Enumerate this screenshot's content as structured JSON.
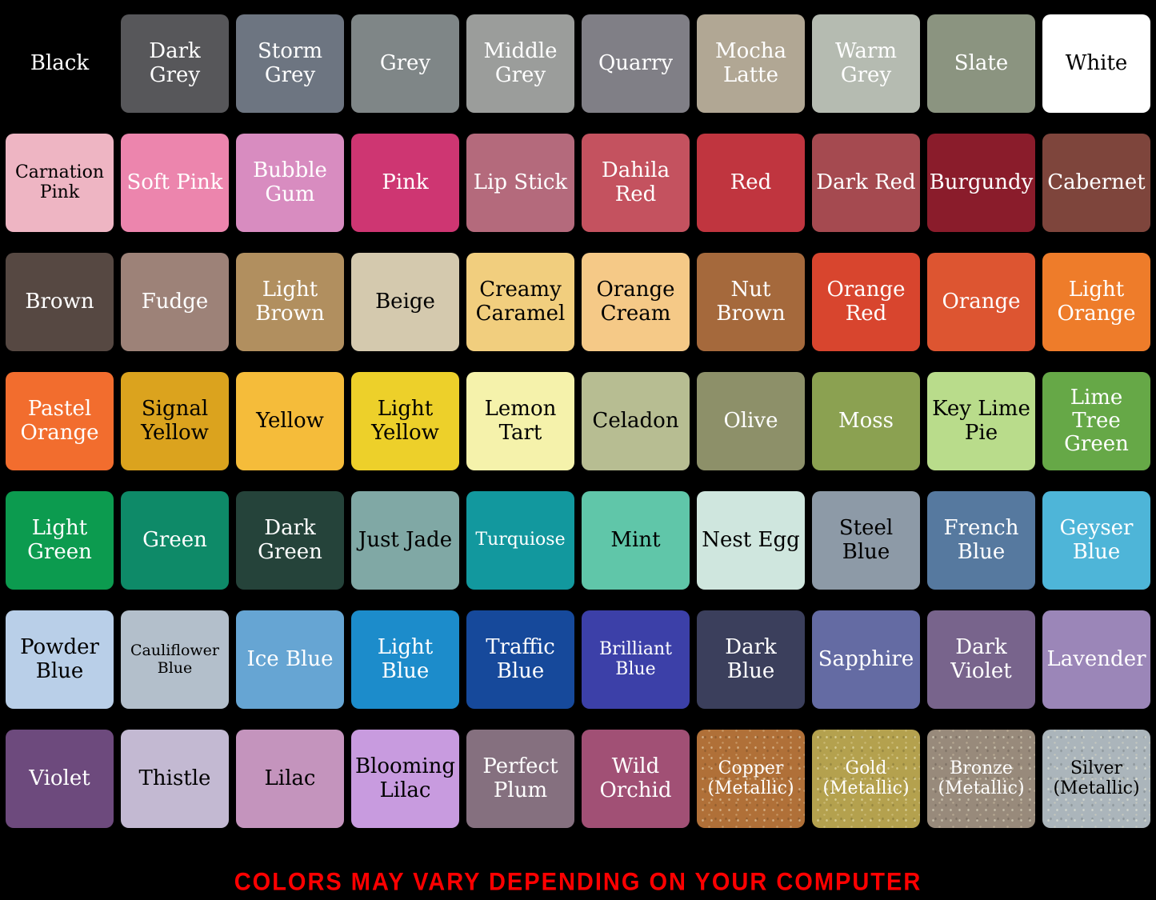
{
  "background": "#000000",
  "chart_data": {
    "type": "table",
    "title": "Color chart of named color swatches",
    "columns": 10,
    "rows": [
      [
        {
          "name": "Black",
          "hex": "#000000",
          "text": "#ffffff",
          "metallic": false
        },
        {
          "name": "Dark Grey",
          "hex": "#57575a",
          "text": "#ffffff",
          "metallic": false
        },
        {
          "name": "Storm Grey",
          "hex": "#6d7581",
          "text": "#ffffff",
          "metallic": false
        },
        {
          "name": "Grey",
          "hex": "#7f8687",
          "text": "#ffffff",
          "metallic": false
        },
        {
          "name": "Middle Grey",
          "hex": "#9b9d9b",
          "text": "#ffffff",
          "metallic": false
        },
        {
          "name": "Quarry",
          "hex": "#807f86",
          "text": "#ffffff",
          "metallic": false
        },
        {
          "name": "Mocha Latte",
          "hex": "#b1a794",
          "text": "#ffffff",
          "metallic": false
        },
        {
          "name": "Warm Grey",
          "hex": "#b5bbb1",
          "text": "#ffffff",
          "metallic": false
        },
        {
          "name": "Slate",
          "hex": "#8b9480",
          "text": "#ffffff",
          "metallic": false
        },
        {
          "name": "White",
          "hex": "#ffffff",
          "text": "#000000",
          "metallic": false
        }
      ],
      [
        {
          "name": "Carnation Pink",
          "hex": "#eeb5c3",
          "text": "#000000",
          "metallic": false
        },
        {
          "name": "Soft Pink",
          "hex": "#ec85ad",
          "text": "#ffffff",
          "metallic": false
        },
        {
          "name": "Bubble Gum",
          "hex": "#d88cc0",
          "text": "#ffffff",
          "metallic": false
        },
        {
          "name": "Pink",
          "hex": "#ce3672",
          "text": "#ffffff",
          "metallic": false
        },
        {
          "name": "Lip Stick",
          "hex": "#b46a7c",
          "text": "#ffffff",
          "metallic": false
        },
        {
          "name": "Dahila Red",
          "hex": "#c4525f",
          "text": "#ffffff",
          "metallic": false
        },
        {
          "name": "Red",
          "hex": "#c0353f",
          "text": "#ffffff",
          "metallic": false
        },
        {
          "name": "Dark Red",
          "hex": "#a54a50",
          "text": "#ffffff",
          "metallic": false
        },
        {
          "name": "Burgundy",
          "hex": "#8a1c2b",
          "text": "#ffffff",
          "metallic": false
        },
        {
          "name": "Cabernet",
          "hex": "#7e453c",
          "text": "#ffffff",
          "metallic": false
        }
      ],
      [
        {
          "name": "Brown",
          "hex": "#564842",
          "text": "#ffffff",
          "metallic": false
        },
        {
          "name": "Fudge",
          "hex": "#9d8278",
          "text": "#ffffff",
          "metallic": false
        },
        {
          "name": "Light Brown",
          "hex": "#b18f5f",
          "text": "#ffffff",
          "metallic": false
        },
        {
          "name": "Beige",
          "hex": "#d4c9ae",
          "text": "#000000",
          "metallic": false
        },
        {
          "name": "Creamy Caramel",
          "hex": "#f1ce7e",
          "text": "#000000",
          "metallic": false
        },
        {
          "name": "Orange Cream",
          "hex": "#f5c987",
          "text": "#000000",
          "metallic": false
        },
        {
          "name": "Nut Brown",
          "hex": "#a5693c",
          "text": "#ffffff",
          "metallic": false
        },
        {
          "name": "Orange Red",
          "hex": "#d8452e",
          "text": "#ffffff",
          "metallic": false
        },
        {
          "name": "Orange",
          "hex": "#dd5531",
          "text": "#ffffff",
          "metallic": false
        },
        {
          "name": "Light Orange",
          "hex": "#ee7c2a",
          "text": "#ffffff",
          "metallic": false
        }
      ],
      [
        {
          "name": "Pastel Orange",
          "hex": "#f26d2e",
          "text": "#ffffff",
          "metallic": false
        },
        {
          "name": "Signal Yellow",
          "hex": "#dba31e",
          "text": "#000000",
          "metallic": false
        },
        {
          "name": "Yellow",
          "hex": "#f5bc3a",
          "text": "#000000",
          "metallic": false
        },
        {
          "name": "Light Yellow",
          "hex": "#edd02a",
          "text": "#000000",
          "metallic": false
        },
        {
          "name": "Lemon Tart",
          "hex": "#f5f2ab",
          "text": "#000000",
          "metallic": false
        },
        {
          "name": "Celadon",
          "hex": "#b7bd92",
          "text": "#000000",
          "metallic": false
        },
        {
          "name": "Olive",
          "hex": "#8d9069",
          "text": "#ffffff",
          "metallic": false
        },
        {
          "name": "Moss",
          "hex": "#8ba151",
          "text": "#ffffff",
          "metallic": false
        },
        {
          "name": "Key Lime Pie",
          "hex": "#b9dc8b",
          "text": "#000000",
          "metallic": false
        },
        {
          "name": "Lime Tree Green",
          "hex": "#66a847",
          "text": "#ffffff",
          "metallic": false
        }
      ],
      [
        {
          "name": "Light Green",
          "hex": "#0c9b4f",
          "text": "#ffffff",
          "metallic": false
        },
        {
          "name": "Green",
          "hex": "#0e8a68",
          "text": "#ffffff",
          "metallic": false
        },
        {
          "name": "Dark Green",
          "hex": "#25433a",
          "text": "#ffffff",
          "metallic": false
        },
        {
          "name": "Just Jade",
          "hex": "#80a8a5",
          "text": "#000000",
          "metallic": false
        },
        {
          "name": "Turquiose",
          "hex": "#12989e",
          "text": "#ffffff",
          "metallic": false
        },
        {
          "name": "Mint",
          "hex": "#60c6a9",
          "text": "#000000",
          "metallic": false
        },
        {
          "name": "Nest Egg",
          "hex": "#cfe6de",
          "text": "#000000",
          "metallic": false
        },
        {
          "name": "Steel Blue",
          "hex": "#8d9aa7",
          "text": "#000000",
          "metallic": false
        },
        {
          "name": "French Blue",
          "hex": "#56799f",
          "text": "#ffffff",
          "metallic": false
        },
        {
          "name": "Geyser Blue",
          "hex": "#4eb5d8",
          "text": "#ffffff",
          "metallic": false
        }
      ],
      [
        {
          "name": "Powder Blue",
          "hex": "#b9cfe8",
          "text": "#000000",
          "metallic": false
        },
        {
          "name": "Cauliflower Blue",
          "hex": "#b3bfcb",
          "text": "#000000",
          "metallic": false
        },
        {
          "name": "Ice Blue",
          "hex": "#66a5d3",
          "text": "#ffffff",
          "metallic": false
        },
        {
          "name": "Light Blue",
          "hex": "#1c8ccb",
          "text": "#ffffff",
          "metallic": false
        },
        {
          "name": "Traffic Blue",
          "hex": "#16499b",
          "text": "#ffffff",
          "metallic": false
        },
        {
          "name": "Brilliant Blue",
          "hex": "#3c40a8",
          "text": "#ffffff",
          "metallic": false
        },
        {
          "name": "Dark Blue",
          "hex": "#3b3f5c",
          "text": "#ffffff",
          "metallic": false
        },
        {
          "name": "Sapphire",
          "hex": "#646ba3",
          "text": "#ffffff",
          "metallic": false
        },
        {
          "name": "Dark Violet",
          "hex": "#78648c",
          "text": "#ffffff",
          "metallic": false
        },
        {
          "name": "Lavender",
          "hex": "#9b86b8",
          "text": "#ffffff",
          "metallic": false
        }
      ],
      [
        {
          "name": "Violet",
          "hex": "#6d4a7d",
          "text": "#ffffff",
          "metallic": false
        },
        {
          "name": "Thistle",
          "hex": "#c3b9d2",
          "text": "#000000",
          "metallic": false
        },
        {
          "name": "Lilac",
          "hex": "#c494bd",
          "text": "#000000",
          "metallic": false
        },
        {
          "name": "Blooming Lilac",
          "hex": "#c89bdf",
          "text": "#000000",
          "metallic": false
        },
        {
          "name": "Perfect Plum",
          "hex": "#85707f",
          "text": "#ffffff",
          "metallic": false
        },
        {
          "name": "Wild Orchid",
          "hex": "#a15075",
          "text": "#ffffff",
          "metallic": false
        },
        {
          "name": "Copper (Metallic)",
          "hex": "#b07038",
          "text": "#ffffff",
          "metallic": true
        },
        {
          "name": "Gold (Metallic)",
          "hex": "#b4a14e",
          "text": "#ffffff",
          "metallic": true
        },
        {
          "name": "Bronze (Metallic)",
          "hex": "#988a7b",
          "text": "#ffffff",
          "metallic": true
        },
        {
          "name": "Silver (Metallic)",
          "hex": "#abb5bb",
          "text": "#000000",
          "metallic": true
        }
      ]
    ]
  },
  "footer": {
    "text": "COLORS MAY VARY DEPENDING ON YOUR COMPUTER",
    "color": "#ff0000"
  }
}
